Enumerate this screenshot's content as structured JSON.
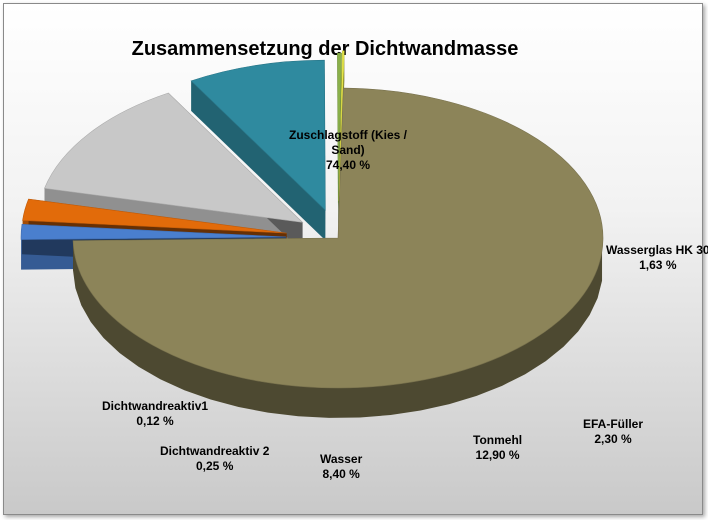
{
  "chart_data": {
    "type": "pie",
    "variant": "3d-exploded",
    "title": "Zusammensetzung der Dichtwandmasse",
    "slices": [
      {
        "name": "Zuschlagstoff (Kies / Sand)",
        "label_lines": [
          "Zuschlagstoff (Kies /",
          "Sand)"
        ],
        "value": 74.4,
        "value_label": "74,40 %",
        "color": "#8c8459"
      },
      {
        "name": "Wasserglas HK 30",
        "label_lines": [
          "Wasserglas HK 30"
        ],
        "value": 1.63,
        "value_label": "1,63 %",
        "color": "#4a7fce"
      },
      {
        "name": "EFA-Füller",
        "label_lines": [
          "EFA-Füller"
        ],
        "value": 2.3,
        "value_label": "2,30 %",
        "color": "#e26b0a"
      },
      {
        "name": "Tonmehl",
        "label_lines": [
          "Tonmehl"
        ],
        "value": 12.9,
        "value_label": "12,90 %",
        "color": "#c8c8c8"
      },
      {
        "name": "Wasser",
        "label_lines": [
          "Wasser"
        ],
        "value": 8.4,
        "value_label": "8,40 %",
        "color": "#2f8a9f"
      },
      {
        "name": "Dichtwandreaktiv 2",
        "label_lines": [
          "Dichtwandreaktiv 2"
        ],
        "value": 0.25,
        "value_label": "0,25 %",
        "color": "#8ab04a"
      },
      {
        "name": "Dichtwandreaktiv1",
        "label_lines": [
          "Dichtwandreaktiv1"
        ],
        "value": 0.12,
        "value_label": "0,12 %",
        "color": "#e8e84a"
      }
    ],
    "legend": "none",
    "data_labels": "outside"
  }
}
